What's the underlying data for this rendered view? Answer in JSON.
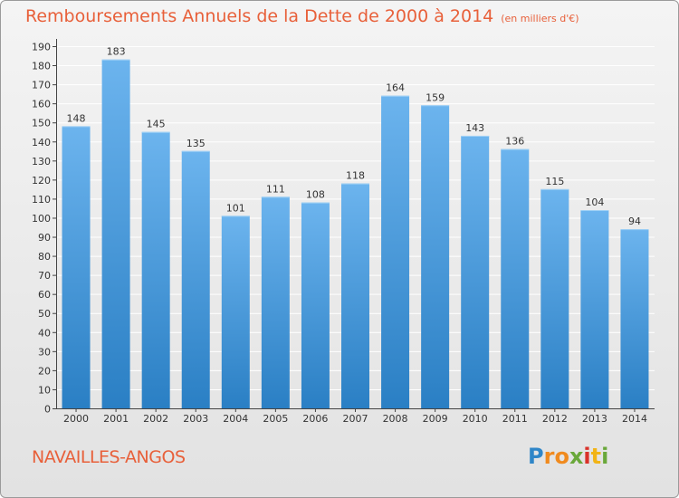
{
  "header": {
    "title": "Remboursements Annuels de la Dette de 2000 à 2014",
    "unit": "(en milliers d'€)"
  },
  "footer": {
    "region": "NAVAILLES-ANGOS",
    "logo_text": "Proxiti"
  },
  "colors": {
    "title": "#e8603a",
    "bar_top": "#6cb4ee",
    "bar_bottom": "#2a7fc4",
    "grid": "#ffffff"
  },
  "chart_data": {
    "type": "bar",
    "title": "Remboursements Annuels de la Dette de 2000 à 2014",
    "xlabel": "",
    "ylabel": "",
    "categories": [
      "2000",
      "2001",
      "2002",
      "2003",
      "2004",
      "2005",
      "2006",
      "2007",
      "2008",
      "2009",
      "2010",
      "2011",
      "2012",
      "2013",
      "2014"
    ],
    "values": [
      148,
      183,
      145,
      135,
      101,
      111,
      108,
      118,
      164,
      159,
      143,
      136,
      115,
      104,
      94
    ],
    "ylim": [
      0,
      190
    ],
    "ytick_step": 10,
    "grid": true,
    "data_labels": true
  }
}
